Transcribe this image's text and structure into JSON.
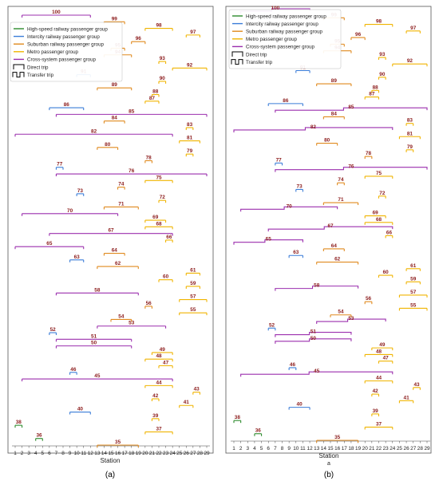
{
  "legend": {
    "items": [
      {
        "label": "High-speed railway passenger group",
        "color": "#2e8b2e"
      },
      {
        "label": "Intercity railway passenger group",
        "color": "#3b7dd8"
      },
      {
        "label": "Suburban railway passenger group",
        "color": "#e08a1e"
      },
      {
        "label": "Metro passenger group",
        "color": "#f0b400"
      },
      {
        "label": "Cross-system passenger group",
        "color": "#9b2fae"
      },
      {
        "label": "Direct trip",
        "color": "#000000"
      },
      {
        "label": "Transfer trip",
        "color": "#000000"
      }
    ]
  },
  "panels": [
    {
      "caption": "(a)",
      "xlabel": "Station",
      "sublabel": ""
    },
    {
      "caption": "(b)",
      "xlabel": "Station",
      "sublabel": "a"
    }
  ],
  "chart_data": [
    {
      "type": "trip-interval-diagram",
      "xlabel": "Station",
      "xticks": [
        1,
        2,
        3,
        4,
        5,
        6,
        7,
        8,
        9,
        10,
        11,
        12,
        13,
        14,
        15,
        16,
        17,
        18,
        19,
        20,
        21,
        22,
        23,
        24,
        25,
        26,
        27,
        28,
        29
      ],
      "groups": {
        "H": "#2e8b2e",
        "I": "#3b7dd8",
        "S": "#e08a1e",
        "M": "#f0b400",
        "C": "#9b2fae"
      },
      "trips": [
        {
          "id": 100,
          "g": "C",
          "from": 2,
          "to": 12
        },
        {
          "id": 99,
          "g": "S",
          "from": 14,
          "to": 17
        },
        {
          "id": 98,
          "g": "M",
          "from": 20,
          "to": 24
        },
        {
          "id": 97,
          "g": "M",
          "from": 26,
          "to": 28
        },
        {
          "id": 96,
          "g": "S",
          "from": 18,
          "to": 20
        },
        {
          "id": 95,
          "g": "S",
          "from": 15,
          "to": 17
        },
        {
          "id": 94,
          "g": "S",
          "from": 14,
          "to": 18
        },
        {
          "id": 93,
          "g": "M",
          "from": 22,
          "to": 23
        },
        {
          "id": 92,
          "g": "M",
          "from": 24,
          "to": 29
        },
        {
          "id": 91,
          "g": "I",
          "from": 10,
          "to": 12
        },
        {
          "id": 90,
          "g": "M",
          "from": 22,
          "to": 23
        },
        {
          "id": 89,
          "g": "S",
          "from": 13,
          "to": 18
        },
        {
          "id": 88,
          "g": "M",
          "from": 21,
          "to": 22
        },
        {
          "id": 87,
          "g": "M",
          "from": 20,
          "to": 22
        },
        {
          "id": 86,
          "g": "I",
          "from": 6,
          "to": 11
        },
        {
          "id": 85,
          "g": "C",
          "from": 7,
          "to": 29
        },
        {
          "id": 84,
          "g": "S",
          "from": 14,
          "to": 17
        },
        {
          "id": 83,
          "g": "M",
          "from": 26,
          "to": 27
        },
        {
          "id": 82,
          "g": "C",
          "from": 1,
          "to": 24
        },
        {
          "id": 81,
          "g": "M",
          "from": 25,
          "to": 28
        },
        {
          "id": 80,
          "g": "S",
          "from": 13,
          "to": 16
        },
        {
          "id": 79,
          "g": "M",
          "from": 26,
          "to": 27
        },
        {
          "id": 78,
          "g": "S",
          "from": 20,
          "to": 21
        },
        {
          "id": 77,
          "g": "I",
          "from": 7,
          "to": 8
        },
        {
          "id": 76,
          "g": "C",
          "from": 7,
          "to": 29
        },
        {
          "id": 75,
          "g": "M",
          "from": 20,
          "to": 24
        },
        {
          "id": 74,
          "g": "S",
          "from": 16,
          "to": 17
        },
        {
          "id": 73,
          "g": "I",
          "from": 10,
          "to": 11
        },
        {
          "id": 72,
          "g": "M",
          "from": 22,
          "to": 23
        },
        {
          "id": 71,
          "g": "S",
          "from": 14,
          "to": 19
        },
        {
          "id": 70,
          "g": "C",
          "from": 2,
          "to": 16
        },
        {
          "id": 69,
          "g": "M",
          "from": 20,
          "to": 23
        },
        {
          "id": 68,
          "g": "M",
          "from": 20,
          "to": 24
        },
        {
          "id": 67,
          "g": "C",
          "from": 6,
          "to": 24
        },
        {
          "id": 66,
          "g": "M",
          "from": 23,
          "to": 24
        },
        {
          "id": 65,
          "g": "C",
          "from": 1,
          "to": 11
        },
        {
          "id": 64,
          "g": "S",
          "from": 14,
          "to": 17
        },
        {
          "id": 63,
          "g": "I",
          "from": 9,
          "to": 11
        },
        {
          "id": 62,
          "g": "S",
          "from": 13,
          "to": 19
        },
        {
          "id": 61,
          "g": "M",
          "from": 26,
          "to": 28
        },
        {
          "id": 60,
          "g": "M",
          "from": 22,
          "to": 24
        },
        {
          "id": 59,
          "g": "M",
          "from": 26,
          "to": 28
        },
        {
          "id": 58,
          "g": "C",
          "from": 7,
          "to": 19
        },
        {
          "id": 57,
          "g": "M",
          "from": 25,
          "to": 29
        },
        {
          "id": 56,
          "g": "S",
          "from": 20,
          "to": 21
        },
        {
          "id": 55,
          "g": "M",
          "from": 25,
          "to": 29
        },
        {
          "id": 54,
          "g": "S",
          "from": 15,
          "to": 18
        },
        {
          "id": 53,
          "g": "C",
          "from": 13,
          "to": 23
        },
        {
          "id": 52,
          "g": "I",
          "from": 6,
          "to": 7
        },
        {
          "id": 51,
          "g": "C",
          "from": 7,
          "to": 18
        },
        {
          "id": 50,
          "g": "C",
          "from": 7,
          "to": 18
        },
        {
          "id": 49,
          "g": "M",
          "from": 21,
          "to": 24
        },
        {
          "id": 48,
          "g": "M",
          "from": 20,
          "to": 24
        },
        {
          "id": 47,
          "g": "M",
          "from": 22,
          "to": 24
        },
        {
          "id": 46,
          "g": "I",
          "from": 9,
          "to": 10
        },
        {
          "id": 45,
          "g": "C",
          "from": 2,
          "to": 24
        },
        {
          "id": 44,
          "g": "M",
          "from": 20,
          "to": 24
        },
        {
          "id": 43,
          "g": "M",
          "from": 27,
          "to": 28
        },
        {
          "id": 42,
          "g": "M",
          "from": 21,
          "to": 22
        },
        {
          "id": 41,
          "g": "M",
          "from": 25,
          "to": 27
        },
        {
          "id": 40,
          "g": "I",
          "from": 9,
          "to": 12
        },
        {
          "id": 39,
          "g": "M",
          "from": 21,
          "to": 22
        },
        {
          "id": 38,
          "g": "H",
          "from": 1,
          "to": 2
        },
        {
          "id": 37,
          "g": "M",
          "from": 20,
          "to": 24
        },
        {
          "id": 36,
          "g": "H",
          "from": 4,
          "to": 5
        },
        {
          "id": 35,
          "g": "S",
          "from": 13,
          "to": 19
        }
      ]
    }
  ]
}
